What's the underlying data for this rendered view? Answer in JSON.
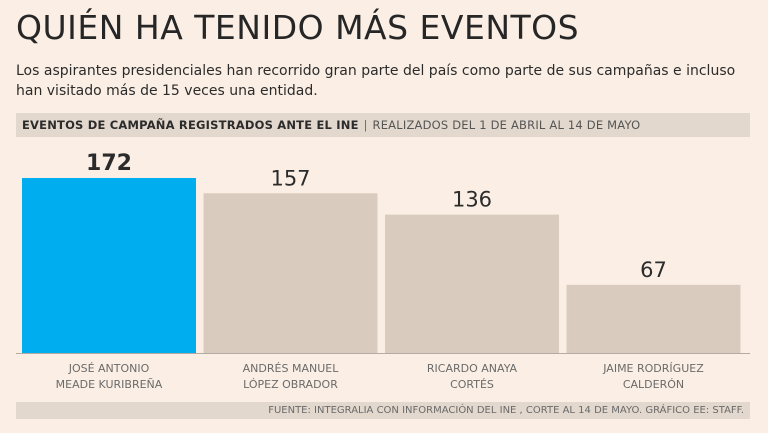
{
  "title": "QUIÉN HA TENIDO MÁS EVENTOS",
  "subtitle": "Los aspirantes presidenciales han recorrido gran parte del país como parte de sus campañas e incluso han visitado más de 15 veces una entidad.",
  "header": {
    "bold_label": "EVENTOS DE CAMPAÑA REGISTRADOS ANTE EL INE",
    "separator": "|",
    "light_label": "REALIZADOS DEL 1 DE ABRIL AL 14 DE MAYO"
  },
  "footer": {
    "source": "FUENTE: INTEGRALIA CON INFORMACIÓN DEL INE , CORTE AL 14 DE MAYO.  GRÁFICO EE: STAFF."
  },
  "colors": {
    "highlight": "#00aeef",
    "bar": "#d9cbbd",
    "background": "#fbefe5"
  },
  "chart_data": {
    "type": "bar",
    "title": "EVENTOS DE CAMPAÑA REGISTRADOS ANTE EL INE",
    "subtitle": "REALIZADOS DEL 1 DE ABRIL AL 14 DE MAYO",
    "xlabel": "",
    "ylabel": "",
    "ylim": [
      0,
      172
    ],
    "grid": false,
    "categories": [
      [
        "JOSÉ ANTONIO",
        "MEADE KURIBREÑA"
      ],
      [
        "ANDRÉS MANUEL",
        "LÓPEZ OBRADOR"
      ],
      [
        "RICARDO ANAYA",
        "CORTÉS"
      ],
      [
        "JAIME RODRÍGUEZ",
        "CALDERÓN"
      ]
    ],
    "values": [
      172,
      157,
      136,
      67
    ],
    "value_labels": [
      "172",
      "157",
      "136",
      "67"
    ],
    "highlighted_index": 0
  }
}
